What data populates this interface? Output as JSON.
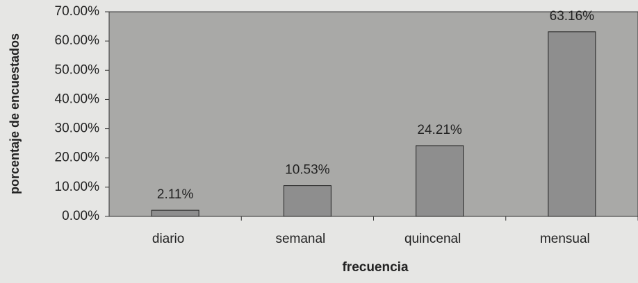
{
  "chart_data": {
    "type": "bar",
    "x_label": "frecuencia",
    "y_label": "porcentaje de encuestados",
    "categories": [
      "diario",
      "semanal",
      "quincenal",
      "mensual"
    ],
    "values": [
      2.11,
      10.53,
      24.21,
      63.16
    ],
    "value_labels": [
      "2.11%",
      "10.53%",
      "24.21%",
      "63.16%"
    ],
    "color": "#8e8e8e",
    "ylim": [
      0,
      70
    ],
    "yticks": [
      {
        "value": 0,
        "label": "0.00%"
      },
      {
        "value": 10,
        "label": "10.00%"
      },
      {
        "value": 20,
        "label": "20.00%"
      },
      {
        "value": 30,
        "label": "30.00%"
      },
      {
        "value": 40,
        "label": "40.00%"
      },
      {
        "value": 50,
        "label": "50.00%"
      },
      {
        "value": 60,
        "label": "60.00%"
      },
      {
        "value": 70,
        "label": "70.00%"
      }
    ],
    "grid": false
  }
}
